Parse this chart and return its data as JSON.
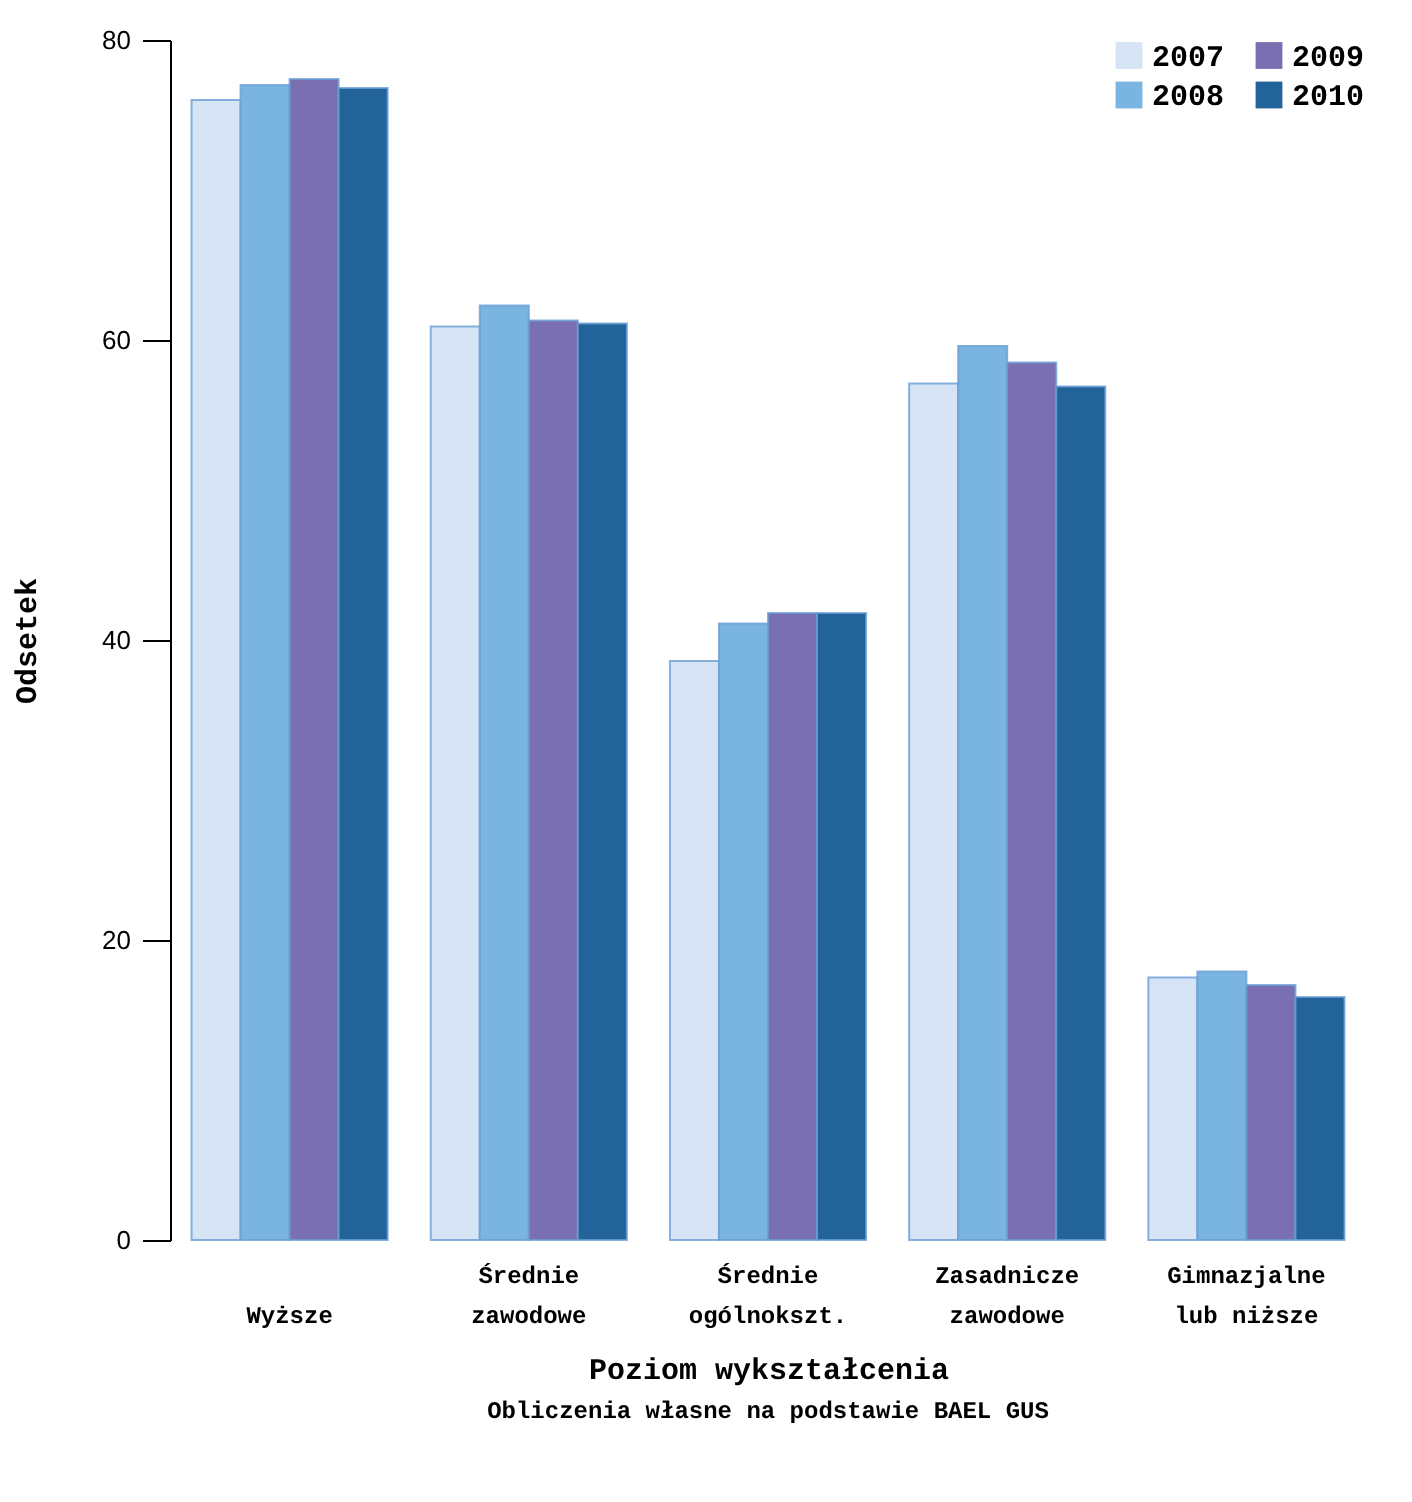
{
  "chart_data": {
    "type": "bar",
    "xlabel": "Poziom wykształcenia",
    "ylabel": "Odsetek",
    "annotations": [
      "Obliczenia własne na podstawie BAEL GUS"
    ],
    "categories": [
      "Wyższe",
      "Średnie zawodowe",
      "Średnie ogólnokszt.",
      "Zasadnicze zawodowe",
      "Gimnazjalne lub niższe"
    ],
    "series": [
      {
        "name": "2007",
        "color": "#d6e4f5",
        "values": [
          76.0,
          60.9,
          38.6,
          57.1,
          17.5
        ]
      },
      {
        "name": "2008",
        "color": "#7ab4e0",
        "values": [
          77.0,
          62.3,
          41.1,
          59.6,
          17.9
        ]
      },
      {
        "name": "2009",
        "color": "#7a6fb0",
        "values": [
          77.4,
          61.3,
          41.8,
          58.5,
          17.0
        ]
      },
      {
        "name": "2010",
        "color": "#22649a",
        "values": [
          76.8,
          61.1,
          41.8,
          56.9,
          16.2
        ]
      }
    ],
    "ylim": [
      0,
      80
    ],
    "yticks": [
      0,
      20,
      40,
      60,
      80
    ],
    "grid": false,
    "legend": "top right"
  }
}
